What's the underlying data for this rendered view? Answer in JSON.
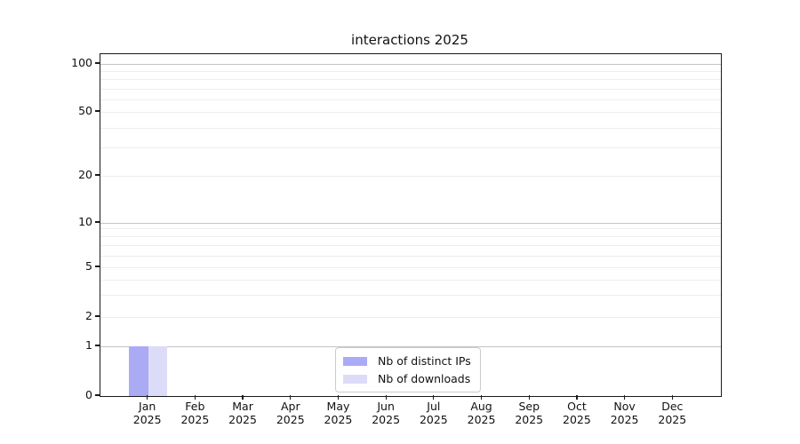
{
  "chart_data": {
    "type": "bar",
    "title": "interactions 2025",
    "categories": [
      "Jan 2025",
      "Feb 2025",
      "Mar 2025",
      "Apr 2025",
      "May 2025",
      "Jun 2025",
      "Jul 2025",
      "Aug 2025",
      "Sep 2025",
      "Oct 2025",
      "Nov 2025",
      "Dec 2025"
    ],
    "series": [
      {
        "name": "Nb of distinct IPs",
        "color": "#aaaaf5",
        "values": [
          1,
          0,
          0,
          0,
          0,
          0,
          0,
          0,
          0,
          0,
          0,
          0
        ]
      },
      {
        "name": "Nb of downloads",
        "color": "#dcdcf8",
        "values": [
          1,
          0,
          0,
          0,
          0,
          0,
          0,
          0,
          0,
          0,
          0,
          0
        ]
      }
    ],
    "y_axis": {
      "ticks": [
        0,
        1,
        2,
        5,
        10,
        20,
        50,
        100
      ],
      "scale": "symlog",
      "lim": [
        0,
        115
      ]
    },
    "grid": {
      "axis": "y",
      "minor": true,
      "major_color": "#c4c4c4",
      "minor_color": "#ededed"
    },
    "legend": {
      "position": "lower center"
    }
  }
}
